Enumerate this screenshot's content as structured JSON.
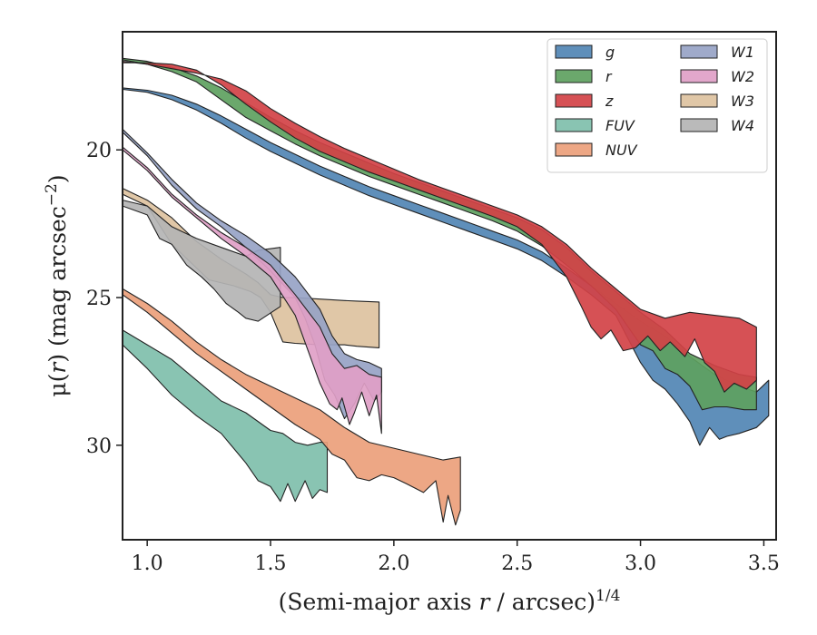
{
  "chart_data": {
    "type": "area",
    "xlabel": "(Semi-major axis r / arcsec)^{1/4}",
    "xlabel_parts": {
      "pre": "(Semi-major axis ",
      "var": "r",
      "mid": " / arcsec)",
      "sup": "1/4"
    },
    "ylabel": "μ(r) (mag arcsec^{-2})",
    "ylabel_parts": {
      "pre": "μ(",
      "var": "r",
      "mid": ") (mag arcsec",
      "sup": "−2",
      "post": ")"
    },
    "xlim": [
      0.9,
      3.55
    ],
    "ylim": [
      33.2,
      16.0
    ],
    "y_inverted": true,
    "xticks": [
      1.0,
      1.5,
      2.0,
      2.5,
      3.0,
      3.5
    ],
    "xtick_labels": [
      "1.0",
      "1.5",
      "2.0",
      "2.5",
      "3.0",
      "3.5"
    ],
    "yticks": [
      20,
      25,
      30
    ],
    "ytick_labels": [
      "20",
      "25",
      "30"
    ],
    "legend": {
      "placement": "top-right",
      "columns": 2,
      "order": [
        "g",
        "r",
        "z",
        "FUV",
        "NUV",
        "W1",
        "W2",
        "W3",
        "W4"
      ]
    },
    "series": [
      {
        "name": "W3",
        "color": "#ddc29f",
        "x": [
          0.9,
          1.0,
          1.1,
          1.2,
          1.3,
          1.4,
          1.45,
          1.5,
          1.55,
          1.6,
          1.7,
          1.8,
          1.85,
          1.94,
          1.94,
          1.85,
          1.8,
          1.7,
          1.6,
          1.55,
          1.5,
          1.46,
          1.42,
          1.35,
          1.25,
          1.1,
          1.0,
          0.9
        ],
        "top": [
          21.3,
          21.7,
          22.3,
          23.1,
          23.7,
          24.2,
          24.5,
          24.9,
          25.0,
          25.0,
          25.05,
          25.1,
          25.12,
          25.15,
          26.7,
          26.65,
          26.6,
          26.6,
          26.55,
          26.5,
          25.5,
          25.0,
          24.8,
          24.6,
          24.4,
          23.2,
          21.9,
          21.5
        ]
      },
      {
        "name": "W4",
        "color": "#b4b4b4",
        "x": [
          0.9,
          1.0,
          1.1,
          1.2,
          1.3,
          1.4,
          1.45,
          1.54,
          1.54,
          1.45,
          1.4,
          1.37,
          1.32,
          1.27,
          1.22,
          1.16,
          1.1,
          1.05,
          1.0,
          0.9
        ],
        "top": [
          21.7,
          21.9,
          22.6,
          23.0,
          23.3,
          23.6,
          23.4,
          23.3,
          25.3,
          25.8,
          25.7,
          25.5,
          25.2,
          24.7,
          24.3,
          23.9,
          23.2,
          23.0,
          22.2,
          21.9
        ]
      },
      {
        "name": "W1",
        "color": "#97a3c5",
        "x": [
          0.9,
          1.0,
          1.1,
          1.2,
          1.3,
          1.4,
          1.5,
          1.6,
          1.7,
          1.75,
          1.8,
          1.85,
          1.9,
          1.95,
          1.95,
          1.92,
          1.88,
          1.84,
          1.8,
          1.76,
          1.72,
          1.68,
          1.64,
          1.6,
          1.5,
          1.4,
          1.3,
          1.2,
          1.1,
          1.0,
          0.9
        ],
        "top": [
          19.3,
          20.1,
          21.0,
          21.8,
          22.4,
          22.9,
          23.5,
          24.3,
          25.4,
          26.3,
          26.9,
          27.1,
          27.2,
          27.4,
          28.2,
          28.5,
          27.9,
          28.6,
          29.1,
          28.3,
          27.8,
          26.6,
          25.7,
          25.0,
          24.1,
          23.3,
          22.6,
          22.0,
          21.2,
          20.2,
          19.4
        ]
      },
      {
        "name": "W2",
        "color": "#dfa0c7",
        "x": [
          0.9,
          1.0,
          1.1,
          1.2,
          1.3,
          1.4,
          1.5,
          1.6,
          1.7,
          1.75,
          1.8,
          1.85,
          1.9,
          1.95,
          1.95,
          1.93,
          1.9,
          1.87,
          1.84,
          1.82,
          1.79,
          1.77,
          1.74,
          1.7,
          1.6,
          1.5,
          1.4,
          1.3,
          1.2,
          1.1,
          1.0,
          0.9
        ],
        "top": [
          19.9,
          20.6,
          21.5,
          22.2,
          22.8,
          23.3,
          23.9,
          24.9,
          26.0,
          26.9,
          27.4,
          27.3,
          27.6,
          27.7,
          29.6,
          28.3,
          29.0,
          28.2,
          28.9,
          29.3,
          28.4,
          28.8,
          28.6,
          27.9,
          25.6,
          24.3,
          23.6,
          23.0,
          22.3,
          21.6,
          20.7,
          20.0
        ]
      },
      {
        "name": "g",
        "color": "#5185b4",
        "x": [
          0.9,
          1.0,
          1.1,
          1.2,
          1.3,
          1.4,
          1.5,
          1.6,
          1.7,
          1.8,
          1.9,
          2.0,
          2.1,
          2.2,
          2.3,
          2.4,
          2.5,
          2.6,
          2.7,
          2.8,
          2.9,
          3.0,
          3.1,
          3.2,
          3.3,
          3.4,
          3.47,
          3.52,
          3.52,
          3.47,
          3.4,
          3.35,
          3.32,
          3.28,
          3.24,
          3.2,
          3.15,
          3.1,
          3.05,
          3.0,
          2.9,
          2.8,
          2.7,
          2.6,
          2.5,
          2.4,
          2.3,
          2.2,
          2.1,
          2.0,
          1.9,
          1.8,
          1.7,
          1.6,
          1.5,
          1.4,
          1.3,
          1.2,
          1.1,
          1.0,
          0.9
        ],
        "top": [
          17.9,
          17.98,
          18.15,
          18.45,
          18.85,
          19.3,
          19.75,
          20.15,
          20.55,
          20.9,
          21.25,
          21.55,
          21.85,
          22.15,
          22.45,
          22.75,
          23.05,
          23.45,
          24.0,
          24.6,
          25.2,
          25.8,
          26.3,
          27.0,
          27.6,
          28.0,
          28.2,
          27.8,
          29.0,
          29.4,
          29.6,
          29.7,
          29.8,
          29.4,
          30.0,
          29.2,
          28.6,
          28.1,
          27.8,
          27.2,
          25.6,
          24.9,
          24.3,
          23.75,
          23.35,
          23.05,
          22.75,
          22.45,
          22.15,
          21.85,
          21.55,
          21.2,
          20.85,
          20.45,
          20.05,
          19.6,
          19.1,
          18.65,
          18.3,
          18.05,
          17.95
        ]
      },
      {
        "name": "r",
        "color": "#5ea15f",
        "x": [
          0.9,
          1.0,
          1.1,
          1.2,
          1.3,
          1.4,
          1.5,
          1.6,
          1.7,
          1.8,
          1.9,
          2.0,
          2.1,
          2.2,
          2.3,
          2.4,
          2.5,
          2.6,
          2.7,
          2.8,
          2.9,
          3.0,
          3.1,
          3.2,
          3.3,
          3.4,
          3.47,
          3.47,
          3.42,
          3.35,
          3.3,
          3.25,
          3.2,
          3.15,
          3.1,
          3.05,
          3.0,
          2.9,
          2.8,
          2.7,
          2.6,
          2.5,
          2.4,
          2.3,
          2.2,
          2.1,
          2.0,
          1.9,
          1.8,
          1.7,
          1.6,
          1.5,
          1.4,
          1.3,
          1.2,
          1.1,
          1.0,
          0.9
        ],
        "top": [
          16.9,
          17.0,
          17.2,
          17.5,
          17.9,
          18.4,
          18.9,
          19.35,
          19.75,
          20.1,
          20.45,
          20.8,
          21.1,
          21.4,
          21.7,
          22.0,
          22.3,
          22.7,
          23.3,
          24.1,
          24.8,
          25.5,
          26.1,
          26.9,
          27.3,
          27.6,
          27.7,
          28.8,
          28.8,
          28.7,
          28.7,
          28.8,
          28.0,
          27.6,
          27.4,
          26.8,
          26.6,
          25.4,
          24.6,
          23.9,
          23.25,
          22.75,
          22.4,
          22.1,
          21.8,
          21.5,
          21.2,
          20.9,
          20.55,
          20.2,
          19.8,
          19.35,
          18.9,
          18.3,
          17.7,
          17.35,
          17.1,
          16.95
        ]
      },
      {
        "name": "z",
        "color": "#d24246",
        "x": [
          0.9,
          1.0,
          1.1,
          1.2,
          1.3,
          1.4,
          1.5,
          1.6,
          1.7,
          1.8,
          1.9,
          2.0,
          2.1,
          2.2,
          2.3,
          2.4,
          2.5,
          2.6,
          2.7,
          2.8,
          2.9,
          3.0,
          3.1,
          3.2,
          3.3,
          3.4,
          3.47,
          3.47,
          3.43,
          3.38,
          3.34,
          3.3,
          3.26,
          3.22,
          3.18,
          3.12,
          3.08,
          3.03,
          2.98,
          2.93,
          2.88,
          2.84,
          2.8,
          2.76,
          2.7,
          2.6,
          2.5,
          2.4,
          2.3,
          2.2,
          2.1,
          2.0,
          1.9,
          1.8,
          1.7,
          1.6,
          1.5,
          1.4,
          1.3,
          1.2,
          1.1,
          1.0,
          0.9
        ],
        "top": [
          17.0,
          17.1,
          17.25,
          17.4,
          17.6,
          18.0,
          18.6,
          19.1,
          19.55,
          19.95,
          20.3,
          20.65,
          21.0,
          21.3,
          21.6,
          21.9,
          22.2,
          22.6,
          23.2,
          24.0,
          24.7,
          25.4,
          25.7,
          25.5,
          25.6,
          25.7,
          26.0,
          27.8,
          28.1,
          27.9,
          28.2,
          27.5,
          27.2,
          26.4,
          27.0,
          26.5,
          26.8,
          26.3,
          26.7,
          26.8,
          26.1,
          26.4,
          26.0,
          25.3,
          24.3,
          23.2,
          22.6,
          22.25,
          21.95,
          21.65,
          21.35,
          21.05,
          20.75,
          20.4,
          20.05,
          19.6,
          19.05,
          18.45,
          17.8,
          17.3,
          17.1,
          17.05,
          17.05
        ]
      },
      {
        "name": "FUV",
        "color": "#7fbfab",
        "x": [
          0.9,
          1.0,
          1.1,
          1.2,
          1.3,
          1.4,
          1.5,
          1.55,
          1.6,
          1.65,
          1.7,
          1.73,
          1.73,
          1.7,
          1.67,
          1.64,
          1.6,
          1.57,
          1.54,
          1.5,
          1.45,
          1.4,
          1.3,
          1.2,
          1.1,
          1.0,
          0.9
        ],
        "top": [
          26.1,
          26.6,
          27.1,
          27.8,
          28.5,
          28.9,
          29.5,
          29.6,
          29.9,
          30.0,
          29.9,
          29.9,
          31.6,
          31.5,
          31.8,
          31.2,
          31.9,
          31.3,
          31.9,
          31.4,
          31.2,
          30.6,
          29.6,
          29.0,
          28.3,
          27.4,
          26.6
        ]
      },
      {
        "name": "NUV",
        "color": "#ec9f7b",
        "x": [
          0.9,
          1.0,
          1.1,
          1.2,
          1.3,
          1.4,
          1.5,
          1.6,
          1.7,
          1.75,
          1.8,
          1.9,
          2.0,
          2.1,
          2.2,
          2.27,
          2.27,
          2.25,
          2.22,
          2.2,
          2.17,
          2.12,
          2.05,
          2.0,
          1.95,
          1.9,
          1.85,
          1.8,
          1.75,
          1.7,
          1.6,
          1.5,
          1.4,
          1.3,
          1.2,
          1.1,
          1.0,
          0.9
        ],
        "top": [
          24.7,
          25.2,
          25.8,
          26.5,
          27.1,
          27.6,
          28.0,
          28.4,
          28.8,
          29.1,
          29.4,
          29.9,
          30.1,
          30.3,
          30.5,
          30.4,
          32.2,
          32.7,
          31.7,
          32.6,
          31.2,
          31.6,
          31.3,
          31.1,
          31.0,
          31.2,
          31.1,
          30.5,
          30.3,
          29.8,
          29.3,
          28.7,
          28.1,
          27.5,
          26.9,
          26.2,
          25.5,
          24.9
        ]
      }
    ]
  }
}
